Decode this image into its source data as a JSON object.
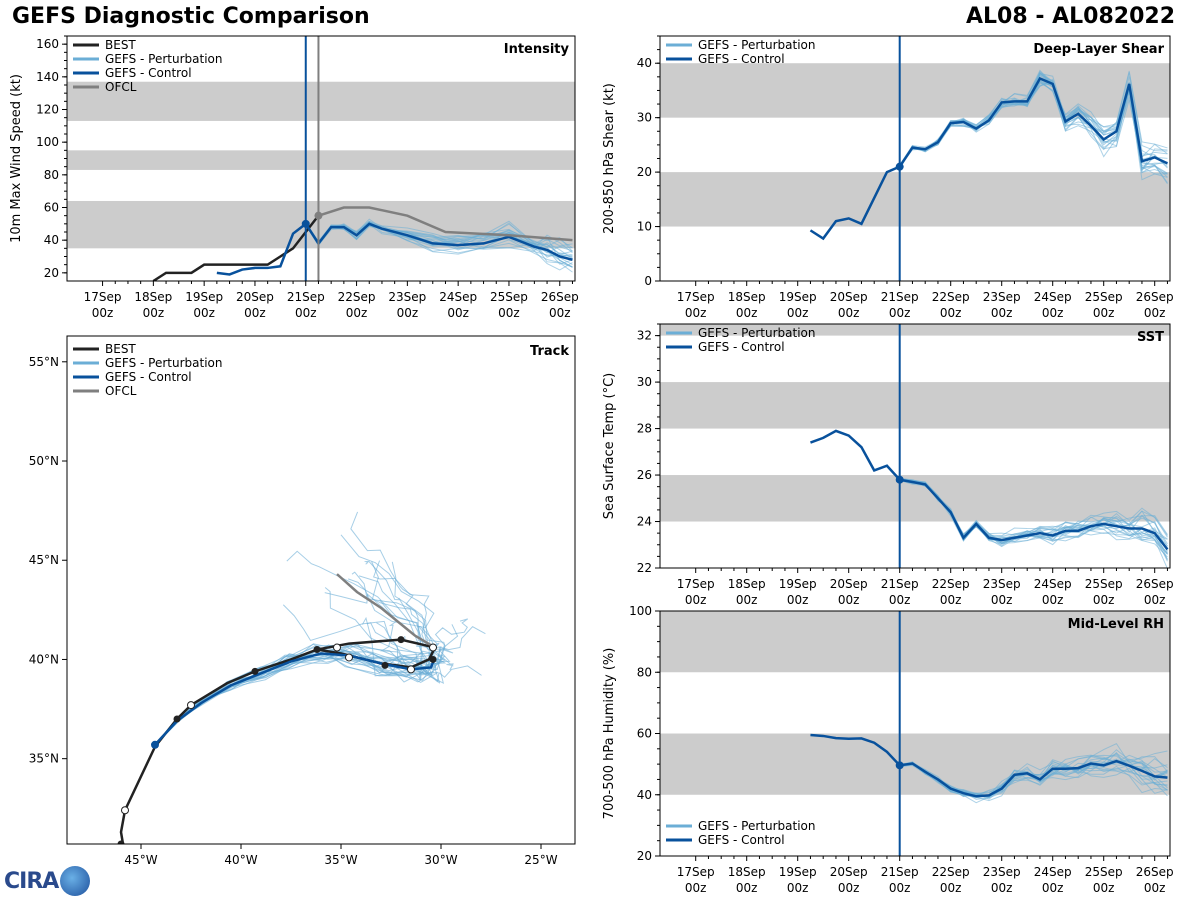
{
  "header": {
    "title_left": "GEFS Diagnostic Comparison",
    "title_right": "AL08 - AL082022"
  },
  "logo": {
    "text": "CIRA"
  },
  "colors": {
    "best": "#222222",
    "perturbation": "#6baed6",
    "control": "#08519c",
    "ofcl": "#7f7f7f",
    "band": "#cccccc",
    "now_line": "#08519c"
  },
  "time_ticks": [
    {
      "day": "17Sep",
      "hour": "00z"
    },
    {
      "day": "18Sep",
      "hour": "00z"
    },
    {
      "day": "19Sep",
      "hour": "00z"
    },
    {
      "day": "20Sep",
      "hour": "00z"
    },
    {
      "day": "21Sep",
      "hour": "00z"
    },
    {
      "day": "22Sep",
      "hour": "00z"
    },
    {
      "day": "23Sep",
      "hour": "00z"
    },
    {
      "day": "24Sep",
      "hour": "00z"
    },
    {
      "day": "25Sep",
      "hour": "00z"
    },
    {
      "day": "26Sep",
      "hour": "00z"
    }
  ],
  "chart_data": [
    {
      "id": "intensity",
      "type": "line",
      "title": "Intensity",
      "ylabel": "10m Max Wind Speed (kt)",
      "ylim": [
        15,
        165
      ],
      "xlim": [
        -4.7,
        5.3
      ],
      "yticks": [
        20,
        40,
        60,
        80,
        100,
        120,
        140,
        160
      ],
      "bands": [
        [
          35,
          64
        ],
        [
          83,
          95
        ],
        [
          113,
          137
        ]
      ],
      "legend": [
        "BEST",
        "GEFS - Perturbation",
        "GEFS - Control",
        "OFCL"
      ],
      "vlines": [
        0,
        0.25
      ],
      "series": [
        {
          "name": "BEST",
          "x": [
            -3.0,
            -2.75,
            -2.25,
            -2.0,
            -1.25,
            -0.75,
            -0.5,
            -0.25,
            0,
            0.25
          ],
          "y": [
            15,
            20,
            20,
            25,
            25,
            25,
            30,
            35,
            45,
            55
          ]
        },
        {
          "name": "GEFS - Control",
          "x": [
            -1.75,
            -1.5,
            -1.25,
            -1.0,
            -0.75,
            -0.5,
            -0.25,
            0,
            0.25,
            0.5,
            0.75,
            1.0,
            1.25,
            1.5,
            2.0,
            2.5,
            3.0,
            3.5,
            4.0,
            4.5,
            4.75,
            5.0,
            5.25
          ],
          "y": [
            20,
            19,
            22,
            23,
            23,
            24,
            44,
            50,
            38,
            48,
            48,
            43,
            50,
            47,
            43,
            38,
            37,
            38,
            42,
            36,
            34,
            30,
            28
          ]
        },
        {
          "name": "OFCL",
          "x": [
            0.25,
            0.75,
            1.25,
            2.0,
            2.75,
            4.0,
            5.25
          ],
          "y": [
            55,
            60,
            60,
            55,
            45,
            43,
            40
          ]
        }
      ]
    },
    {
      "id": "shear",
      "type": "line",
      "title": "Deep-Layer Shear",
      "ylabel": "200-850 hPa Shear (kt)",
      "ylim": [
        0,
        45
      ],
      "xlim": [
        -4.7,
        5.3
      ],
      "yticks": [
        0,
        10,
        20,
        30,
        40
      ],
      "bands": [
        [
          10,
          20
        ],
        [
          30,
          40
        ]
      ],
      "legend": [
        "GEFS - Perturbation",
        "GEFS - Control"
      ],
      "vlines": [
        0
      ],
      "series": [
        {
          "name": "GEFS - Control",
          "x": [
            -1.75,
            -1.5,
            -1.25,
            -1.0,
            -0.75,
            -0.25,
            0,
            0.25,
            0.5,
            0.75,
            1.0,
            1.25,
            1.5,
            1.75,
            2.0,
            2.25,
            2.5,
            2.75,
            3.0,
            3.25,
            3.5,
            3.75,
            4.0,
            4.25,
            4.5,
            4.75,
            5.0,
            5.25
          ],
          "y": [
            9.3,
            7.8,
            11,
            11.5,
            10.5,
            20,
            21,
            24.5,
            24.2,
            25.5,
            29,
            29.2,
            28,
            29.5,
            32.8,
            33,
            33,
            37.2,
            36.2,
            29.3,
            30.7,
            28.5,
            26,
            27.5,
            36.2,
            22,
            22.7,
            21.6
          ]
        }
      ]
    },
    {
      "id": "sst",
      "type": "line",
      "title": "SST",
      "ylabel": "Sea Surface Temp (°C)",
      "ylim": [
        22,
        32.5
      ],
      "xlim": [
        -4.7,
        5.3
      ],
      "yticks": [
        22,
        24,
        26,
        28,
        30,
        32
      ],
      "bands": [
        [
          24,
          26
        ],
        [
          28,
          30
        ],
        [
          32,
          32.5
        ]
      ],
      "legend": [
        "GEFS - Perturbation",
        "GEFS - Control"
      ],
      "vlines": [
        0
      ],
      "series": [
        {
          "name": "GEFS - Control",
          "x": [
            -1.75,
            -1.5,
            -1.25,
            -1.0,
            -0.75,
            -0.5,
            -0.25,
            0,
            0.25,
            0.5,
            0.75,
            1.0,
            1.25,
            1.5,
            1.75,
            2.0,
            2.25,
            2.5,
            2.75,
            3.0,
            3.25,
            3.5,
            3.75,
            4.0,
            4.25,
            4.5,
            4.75,
            5.0,
            5.25
          ],
          "y": [
            27.4,
            27.6,
            27.9,
            27.7,
            27.2,
            26.2,
            26.4,
            25.8,
            25.7,
            25.6,
            25.0,
            24.4,
            23.3,
            23.9,
            23.3,
            23.2,
            23.3,
            23.4,
            23.5,
            23.4,
            23.6,
            23.6,
            23.8,
            23.9,
            23.8,
            23.7,
            23.7,
            23.5,
            22.8
          ]
        }
      ]
    },
    {
      "id": "rh",
      "type": "line",
      "title": "Mid-Level RH",
      "ylabel": "700-500 hPa Humidity (%)",
      "ylim": [
        20,
        100
      ],
      "xlim": [
        -4.7,
        5.3
      ],
      "yticks": [
        20,
        40,
        60,
        80,
        100
      ],
      "bands": [
        [
          40,
          60
        ],
        [
          80,
          100
        ]
      ],
      "legend": [
        "GEFS - Perturbation",
        "GEFS - Control"
      ],
      "vlines": [
        0
      ],
      "series": [
        {
          "name": "GEFS - Control",
          "x": [
            -1.75,
            -1.5,
            -1.25,
            -1.0,
            -0.75,
            -0.5,
            -0.25,
            0,
            0.25,
            0.5,
            0.75,
            1.0,
            1.25,
            1.5,
            1.75,
            2.0,
            2.25,
            2.5,
            2.75,
            3.0,
            3.25,
            3.5,
            3.75,
            4.0,
            4.25,
            4.5,
            4.75,
            5.0,
            5.25
          ],
          "y": [
            59.5,
            59.2,
            58.5,
            58.3,
            58.4,
            57,
            54,
            49.6,
            50.2,
            47.5,
            45,
            42,
            40.5,
            39.5,
            39.8,
            42,
            46.5,
            47,
            45,
            48.5,
            48.5,
            48.7,
            50.2,
            49.6,
            51,
            49.5,
            47.8,
            46,
            45.6
          ]
        }
      ]
    },
    {
      "id": "track",
      "type": "line",
      "title": "Track",
      "legend": [
        "BEST",
        "GEFS - Perturbation",
        "GEFS - Control",
        "OFCL"
      ],
      "xlim": [
        -48.7,
        -23.3
      ],
      "ylim": [
        30.7,
        56.3
      ],
      "xticks": [
        {
          "v": -45,
          "label": "45°W"
        },
        {
          "v": -40,
          "label": "40°W"
        },
        {
          "v": -35,
          "label": "35°W"
        },
        {
          "v": -30,
          "label": "30°W"
        },
        {
          "v": -25,
          "label": "25°W"
        }
      ],
      "yticks": [
        {
          "v": 35,
          "label": "35°N"
        },
        {
          "v": 40,
          "label": "40°N"
        },
        {
          "v": 45,
          "label": "45°N"
        },
        {
          "v": 50,
          "label": "50°N"
        },
        {
          "v": 55,
          "label": "55°N"
        }
      ],
      "series": [
        {
          "name": "BEST",
          "lon": [
            -45.9,
            -46.0,
            -45.8,
            -44.3,
            -43.2,
            -42.5,
            -40.7,
            -39.3,
            -37.5,
            -36.2,
            -34.6,
            -32.0,
            -30.3,
            -30.6,
            -31.5,
            -33.0,
            -35.0,
            -36.2
          ],
          "lat": [
            30.7,
            31.3,
            32.4,
            35.6,
            37.0,
            37.7,
            38.8,
            39.4,
            40.0,
            40.5,
            40.8,
            41.0,
            40.6,
            40.0,
            39.6,
            39.8,
            40.3,
            40.5
          ]
        },
        {
          "name": "GEFS - Control",
          "lon": [
            -44.3,
            -43.2,
            -42.0,
            -40.5,
            -39.0,
            -37.5,
            -36.0,
            -34.6,
            -33.0,
            -31.5,
            -30.5,
            -30.3
          ],
          "lat": [
            35.7,
            36.9,
            37.8,
            38.7,
            39.3,
            39.9,
            40.3,
            40.2,
            39.8,
            39.5,
            39.6,
            40.1
          ]
        },
        {
          "name": "OFCL",
          "lon": [
            -30.3,
            -31.3,
            -33.0,
            -34.2,
            -35.2
          ],
          "lat": [
            40.6,
            41.2,
            42.6,
            43.4,
            44.3
          ]
        }
      ],
      "markers": {
        "filled": [
          {
            "lon": -46.0,
            "lat": 30.7
          },
          {
            "lon": -43.2,
            "lat": 37.0
          },
          {
            "lon": -39.3,
            "lat": 39.4
          },
          {
            "lon": -36.2,
            "lat": 40.5
          },
          {
            "lon": -32.0,
            "lat": 41.0
          },
          {
            "lon": -30.4,
            "lat": 40.0
          },
          {
            "lon": -32.8,
            "lat": 39.7
          }
        ],
        "hollow": [
          {
            "lon": -45.8,
            "lat": 32.4
          },
          {
            "lon": -42.5,
            "lat": 37.7
          },
          {
            "lon": -35.2,
            "lat": 40.6
          },
          {
            "lon": -34.6,
            "lat": 40.1
          },
          {
            "lon": -31.5,
            "lat": 39.5
          },
          {
            "lon": -30.4,
            "lat": 40.6
          }
        ],
        "control_start": {
          "lon": -44.3,
          "lat": 35.7
        }
      }
    }
  ]
}
